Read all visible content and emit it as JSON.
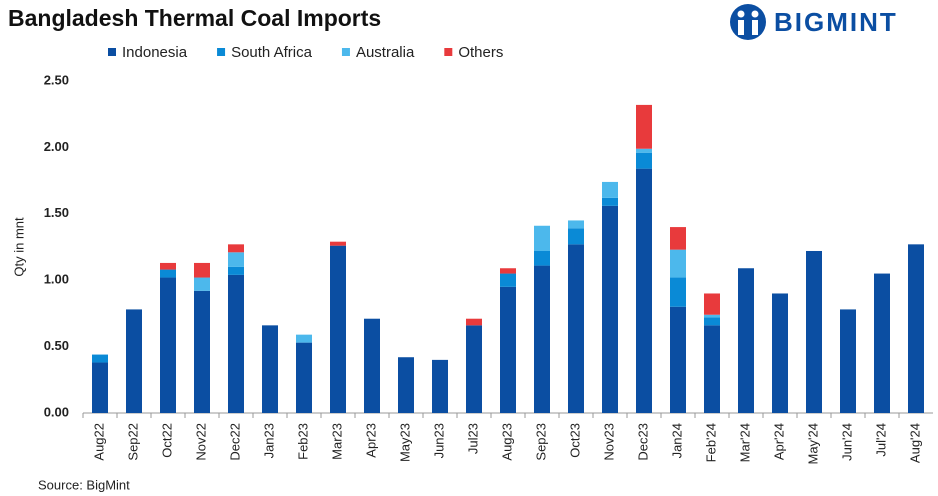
{
  "brand": "BIGMINT",
  "chart_data": {
    "type": "stacked-bar",
    "title": "Bangladesh Thermal Coal Imports",
    "y_label": "Qty in mnt",
    "source": "Source: BigMint",
    "categories": [
      "Aug22",
      "Sep22",
      "Oct22",
      "Nov22",
      "Dec22",
      "Jan23",
      "Feb23",
      "Mar23",
      "Apr23",
      "May23",
      "Jun23",
      "Jul23",
      "Aug23",
      "Sep23",
      "Oct23",
      "Nov23",
      "Dec23",
      "Jan24",
      "Feb'24",
      "Mar'24",
      "Apr'24",
      "May'24",
      "Jun'24",
      "Jul'24",
      "Aug'24"
    ],
    "series": [
      {
        "name": "Indonesia",
        "color": "#0b4ea2",
        "values": [
          0.38,
          0.78,
          1.02,
          0.92,
          1.04,
          0.66,
          0.53,
          1.26,
          0.71,
          0.42,
          0.4,
          0.66,
          0.95,
          1.11,
          1.27,
          1.56,
          1.84,
          0.8,
          0.66,
          1.09,
          0.9,
          1.22,
          0.78,
          1.05,
          1.27
        ]
      },
      {
        "name": "South Africa",
        "color": "#0a8ad6",
        "values": [
          0.06,
          null,
          0.06,
          null,
          0.06,
          null,
          null,
          null,
          null,
          null,
          null,
          null,
          0.1,
          0.11,
          0.12,
          0.06,
          0.12,
          0.22,
          0.06,
          null,
          null,
          null,
          null,
          null,
          null
        ]
      },
      {
        "name": "Australia",
        "color": "#4cb8ec",
        "values": [
          null,
          null,
          null,
          0.1,
          0.11,
          null,
          0.06,
          null,
          null,
          null,
          null,
          null,
          null,
          0.19,
          0.06,
          0.12,
          0.03,
          0.21,
          0.02,
          null,
          null,
          null,
          null,
          null,
          null
        ]
      },
      {
        "name": "Others",
        "color": "#e83a3c",
        "values": [
          null,
          null,
          0.05,
          0.11,
          0.06,
          null,
          null,
          0.03,
          null,
          null,
          null,
          0.05,
          0.04,
          null,
          null,
          null,
          0.33,
          0.17,
          0.16,
          null,
          null,
          null,
          null,
          null,
          null
        ]
      }
    ],
    "ylim": [
      0,
      2.5
    ],
    "yticks": [
      {
        "value": 0,
        "label": "0.00"
      },
      {
        "value": 0.5,
        "label": "0.50"
      },
      {
        "value": 1,
        "label": "1.00"
      },
      {
        "value": 1.5,
        "label": "1.50"
      },
      {
        "value": 2,
        "label": "2.00"
      },
      {
        "value": 2.5,
        "label": "2.50"
      }
    ],
    "grid": false
  }
}
